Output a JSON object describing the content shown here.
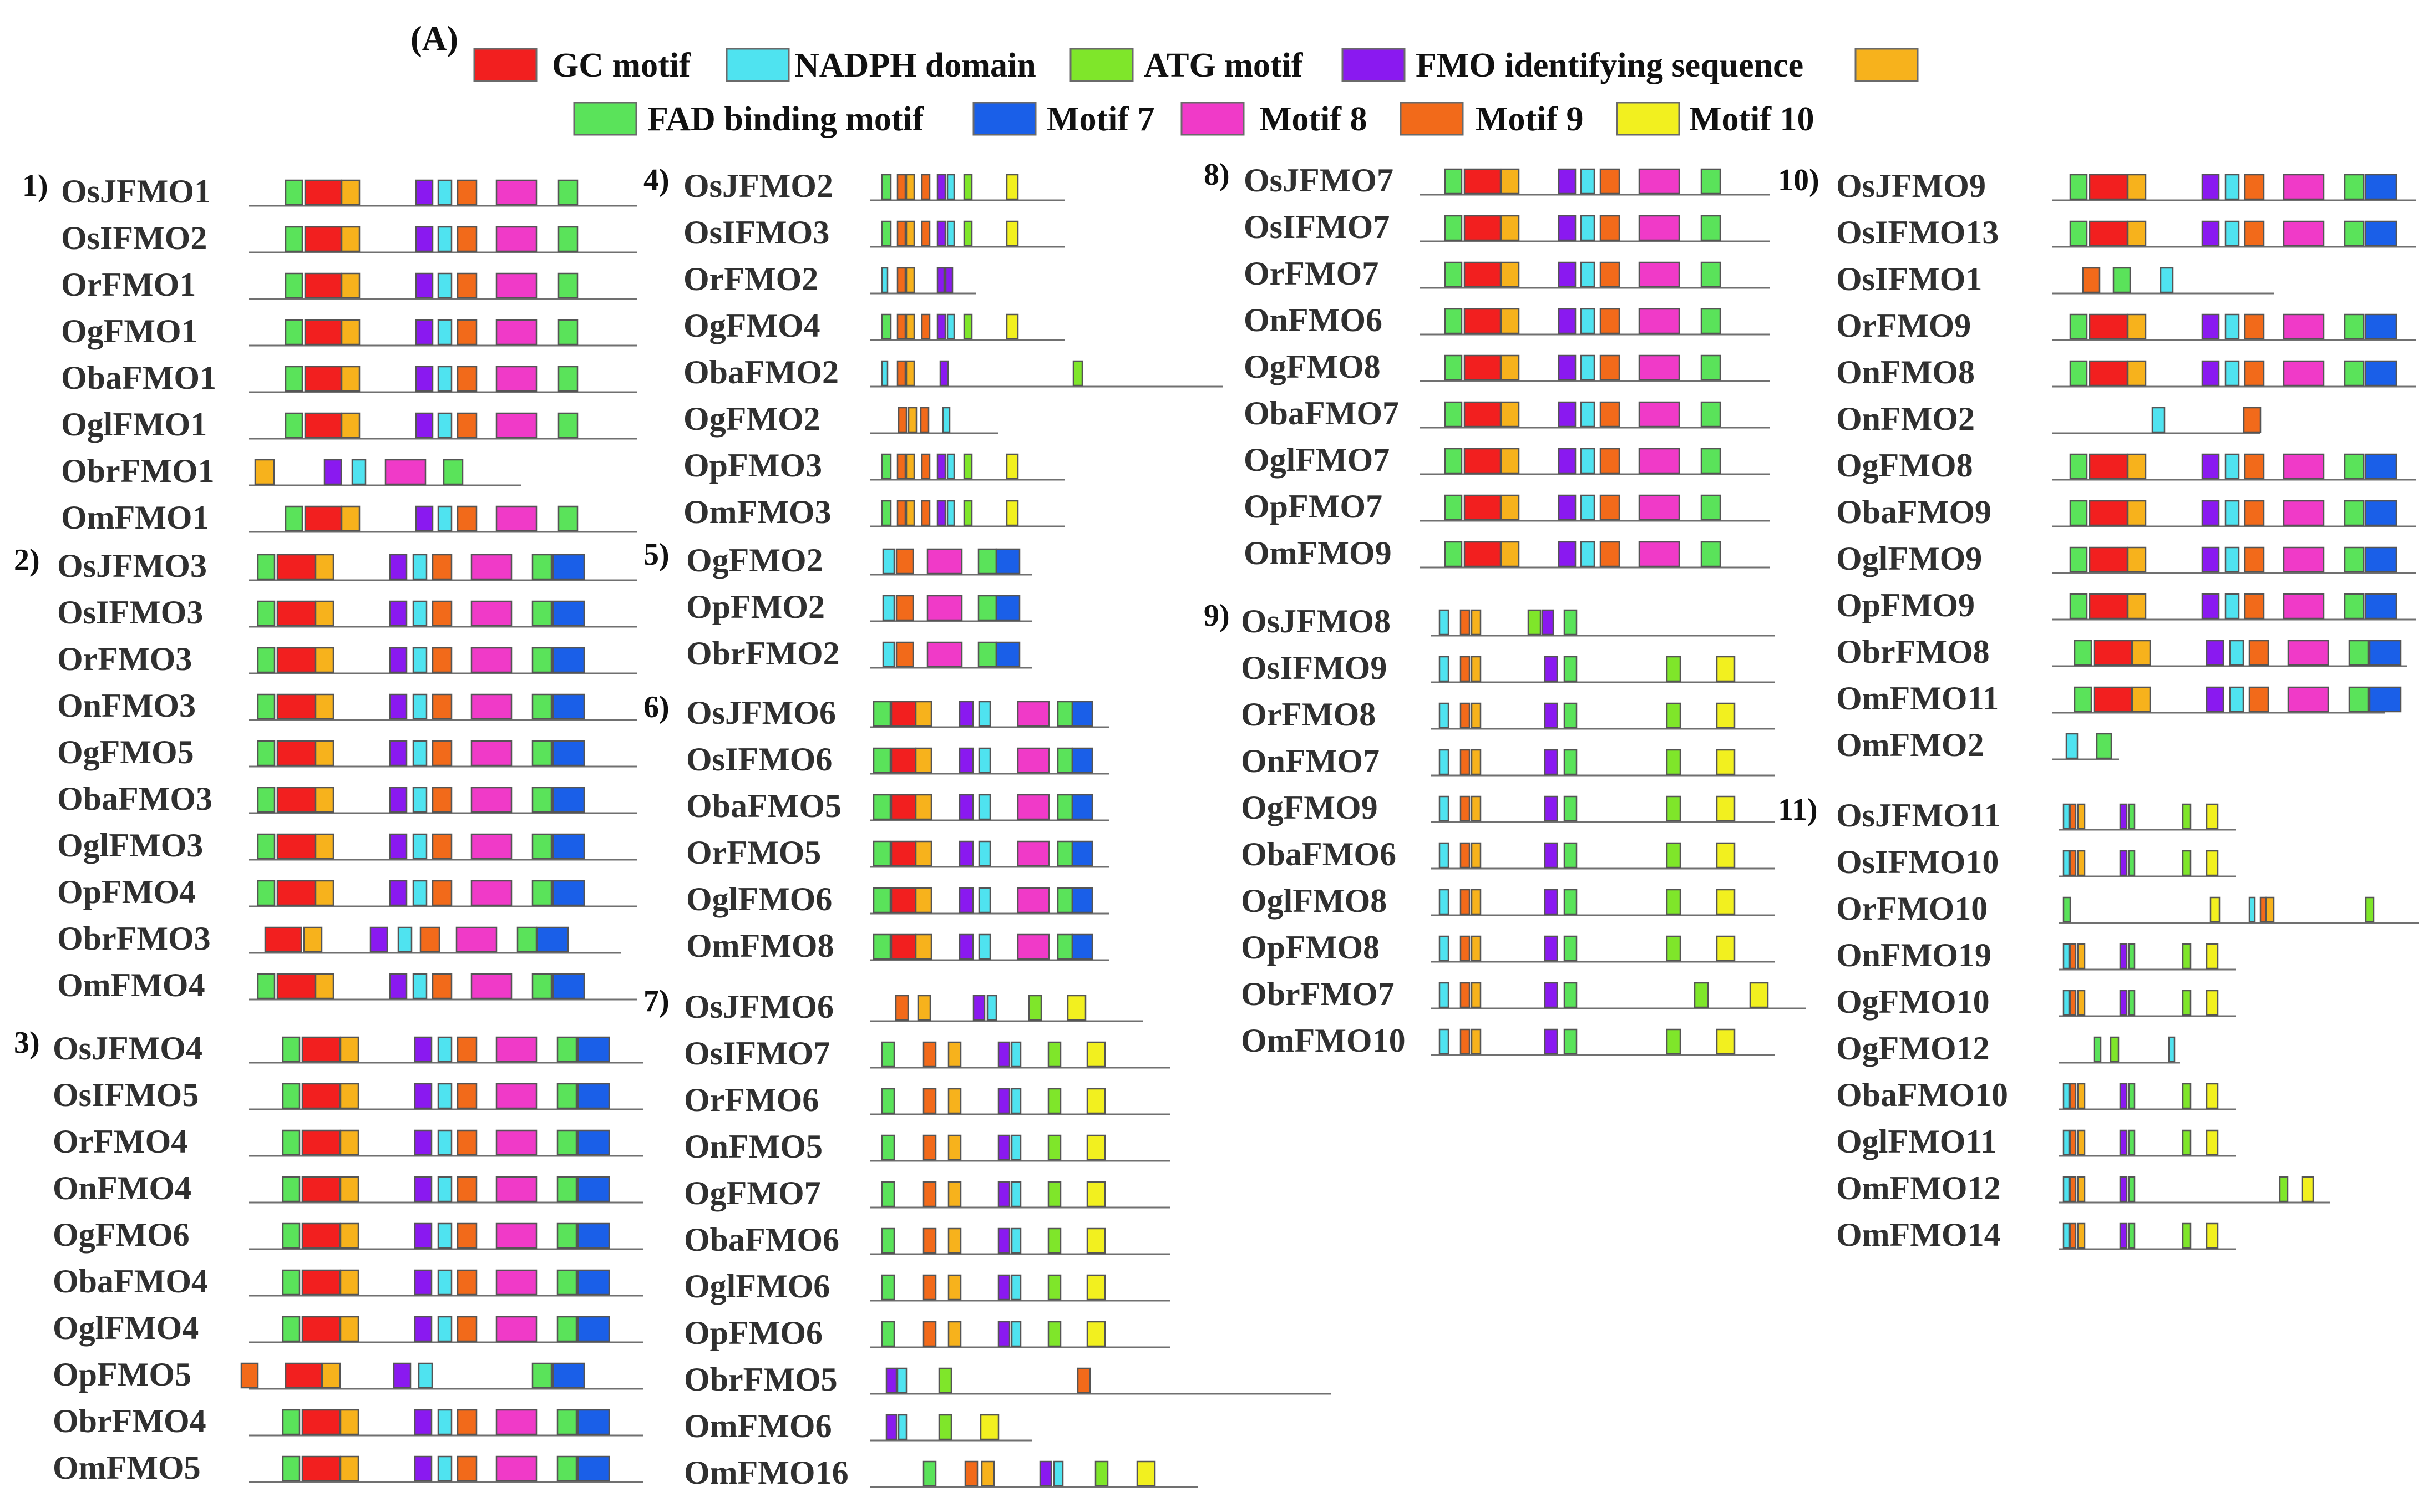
{
  "figure_label": "(A)",
  "legend": [
    {
      "key": "gc",
      "label": "GC motif",
      "color": "#f21f1f"
    },
    {
      "key": "nadph",
      "label": "NADPH domain",
      "color": "#4fe3f0"
    },
    {
      "key": "atg",
      "label": "ATG motif",
      "color": "#7fe62a"
    },
    {
      "key": "fmo",
      "label": "FMO identifying sequence",
      "color": "#8a19f0"
    },
    {
      "key": "fad",
      "label": "FAD binding motif",
      "color": "#5ae35a"
    },
    {
      "key": "m7",
      "label": "Motif 7",
      "color": "#1a5fe8"
    },
    {
      "key": "m8",
      "label": "Motif 8",
      "color": "#f03ac8"
    },
    {
      "key": "m9",
      "label": "Motif 9",
      "color": "#f26a1a"
    },
    {
      "key": "m10",
      "label": "Motif 10",
      "color": "#f2f01f"
    },
    {
      "key": "orange",
      "label": "",
      "color": "#f7b21c"
    }
  ],
  "groups": [
    {
      "id": "1)",
      "genes": [
        "OsJFMO1",
        "OsIFMO2",
        "OrFMO1",
        "OgFMO1",
        "ObaFMO1",
        "OglFMO1",
        "ObrFMO1",
        "OmFMO1"
      ]
    },
    {
      "id": "2)",
      "genes": [
        "OsJFMO3",
        "OsIFMO3",
        "OrFMO3",
        "OnFMO3",
        "OgFMO5",
        "ObaFMO3",
        "OglFMO3",
        "OpFMO4",
        "ObrFMO3",
        "OmFMO4"
      ]
    },
    {
      "id": "3)",
      "genes": [
        "OsJFMO4",
        "OsIFMO5",
        "OrFMO4",
        "OnFMO4",
        "OgFMO6",
        "ObaFMO4",
        "OglFMO4",
        "OpFMO5",
        "ObrFMO4",
        "OmFMO5"
      ]
    },
    {
      "id": "4)",
      "genes": [
        "OsJFMO2",
        "OsIFMO3",
        "OrFMO2",
        "OgFMO4",
        "ObaFMO2",
        "OgFMO2",
        "OpFMO3",
        "OmFMO3"
      ]
    },
    {
      "id": "5)",
      "genes": [
        "OgFMO2",
        "OpFMO2",
        "ObrFMO2"
      ]
    },
    {
      "id": "6)",
      "genes": [
        "OsJFMO6",
        "OsIFMO6",
        "ObaFMO5",
        "OrFMO5",
        "OglFMO6",
        "OmFMO8"
      ]
    },
    {
      "id": "7)",
      "genes": [
        "OsJFMO6",
        "OsIFMO7",
        "OrFMO6",
        "OnFMO5",
        "OgFMO7",
        "ObaFMO6",
        "OglFMO6",
        "OpFMO6",
        "ObrFMO5",
        "OmFMO6",
        "OmFMO16"
      ]
    },
    {
      "id": "8)",
      "genes": [
        "OsJFMO7",
        "OsIFMO7",
        "OrFMO7",
        "OnFMO6",
        "OgFMO8",
        "ObaFMO7",
        "OglFMO7",
        "OpFMO7",
        "OmFMO9"
      ]
    },
    {
      "id": "9)",
      "genes": [
        "OsJFMO8",
        "OsIFMO9",
        "OrFMO8",
        "OnFMO7",
        "OgFMO9",
        "ObaFMO6",
        "OglFMO8",
        "OpFMO8",
        "ObrFMO7",
        "OmFMO10"
      ]
    },
    {
      "id": "10)",
      "genes": [
        "OsJFMO9",
        "OsIFMO13",
        "OsIFMO1",
        "OrFMO9",
        "OnFMO8",
        "OnFMO2",
        "OgFMO8",
        "ObaFMO9",
        "OglFMO9",
        "OpFMO9",
        "ObrFMO8",
        "OmFMO11",
        "OmFMO2"
      ]
    },
    {
      "id": "11)",
      "genes": [
        "OsJFMO11",
        "OsIFMO10",
        "OrFMO10",
        "OnFMO19",
        "OgFMO10",
        "OgFMO12",
        "ObaFMO10",
        "OglFMO11",
        "OmFMO12",
        "OmFMO14"
      ]
    }
  ]
}
